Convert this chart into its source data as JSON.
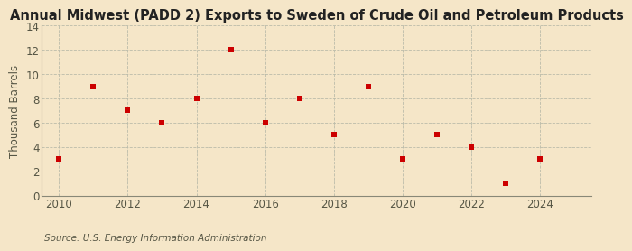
{
  "title": "Annual Midwest (PADD 2) Exports to Sweden of Crude Oil and Petroleum Products",
  "ylabel": "Thousand Barrels",
  "source": "Source: U.S. Energy Information Administration",
  "background_color": "#f5e6c8",
  "plot_bg_color": "#fdf5e6",
  "years": [
    2010,
    2011,
    2012,
    2013,
    2014,
    2015,
    2016,
    2017,
    2018,
    2019,
    2020,
    2021,
    2022,
    2023,
    2024
  ],
  "values": [
    3,
    9,
    7,
    6,
    8,
    12,
    6,
    8,
    5,
    9,
    3,
    5,
    4,
    1,
    3
  ],
  "marker_color": "#cc0000",
  "marker": "s",
  "marker_size": 4,
  "xlim": [
    2009.5,
    2025.5
  ],
  "ylim": [
    0,
    14
  ],
  "yticks": [
    0,
    2,
    4,
    6,
    8,
    10,
    12,
    14
  ],
  "xticks": [
    2010,
    2012,
    2014,
    2016,
    2018,
    2020,
    2022,
    2024
  ],
  "grid_color": "#bbbbaa",
  "title_fontsize": 10.5,
  "axis_label_fontsize": 8.5,
  "tick_fontsize": 8.5,
  "source_fontsize": 7.5
}
